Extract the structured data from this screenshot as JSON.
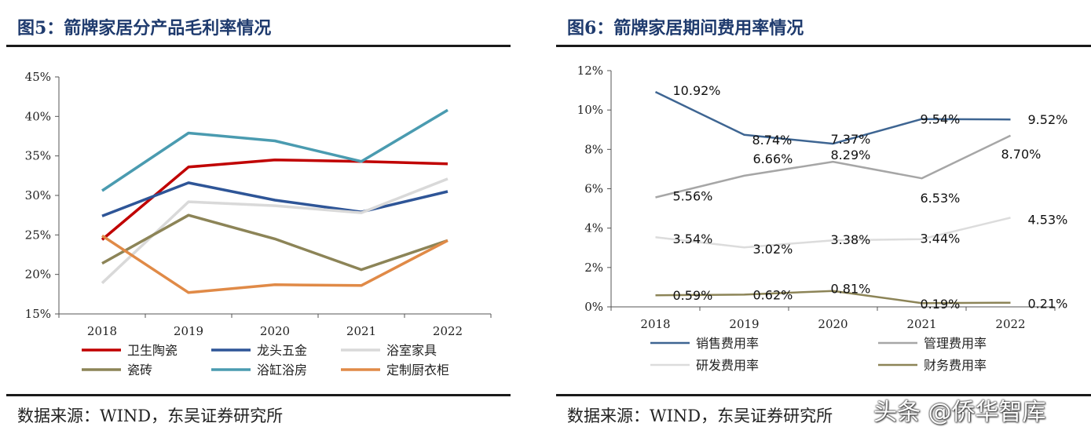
{
  "charts": {
    "left": {
      "figure_title": "图5：箭牌家居分产品毛利率情况",
      "source": "数据来源：WIND，东吴证券研究所"
    },
    "right": {
      "figure_title": "图6：箭牌家居期间费用率情况",
      "source": "数据来源：WIND，东吴证券研究所"
    }
  },
  "watermark": "头条 @侨华智库",
  "chart_data": [
    {
      "type": "line",
      "title": "图5：箭牌家居分产品毛利率情况",
      "x": [
        "2018",
        "2019",
        "2020",
        "2021",
        "2022"
      ],
      "ylim": [
        15,
        45
      ],
      "yticks": [
        "15%",
        "20%",
        "25%",
        "30%",
        "35%",
        "40%",
        "45%"
      ],
      "grid": false,
      "legend_position": "bottom",
      "series": [
        {
          "name": "卫生陶瓷",
          "values": [
            24.4,
            33.6,
            34.5,
            34.3,
            34.0
          ],
          "color": "#c00000"
        },
        {
          "name": "龙头五金",
          "values": [
            27.4,
            31.6,
            29.4,
            27.9,
            30.5
          ],
          "color": "#2e5597"
        },
        {
          "name": "浴室家具",
          "values": [
            18.9,
            29.2,
            28.7,
            27.8,
            32.1
          ],
          "color": "#d9d9d9"
        },
        {
          "name": "瓷砖",
          "values": [
            21.4,
            27.5,
            24.5,
            20.6,
            24.3
          ],
          "color": "#8c8457"
        },
        {
          "name": "浴缸浴房",
          "values": [
            30.6,
            37.9,
            36.9,
            34.3,
            40.8
          ],
          "color": "#4a9bb0"
        },
        {
          "name": "定制厨衣柜",
          "values": [
            24.9,
            17.7,
            18.7,
            18.6,
            24.3
          ],
          "color": "#e08a47"
        }
      ]
    },
    {
      "type": "line",
      "title": "图6：箭牌家居期间费用率情况",
      "x": [
        "2018",
        "2019",
        "2020",
        "2021",
        "2022"
      ],
      "ylim": [
        0,
        12
      ],
      "yticks": [
        "0%",
        "2%",
        "4%",
        "6%",
        "8%",
        "10%",
        "12%"
      ],
      "grid": false,
      "legend_position": "bottom",
      "series": [
        {
          "name": "销售费用率",
          "values": [
            10.92,
            8.74,
            8.29,
            9.54,
            9.52
          ],
          "labels": [
            "10.92%",
            "8.74%",
            "8.29%",
            "9.54%",
            "9.52%"
          ],
          "color": "#3e6592"
        },
        {
          "name": "管理费用率",
          "values": [
            5.56,
            6.66,
            7.37,
            6.53,
            8.7
          ],
          "labels": [
            "5.56%",
            "6.66%",
            "7.37%",
            "6.53%",
            "8.70%"
          ],
          "color": "#a6a6a6"
        },
        {
          "name": "研发费用率",
          "values": [
            3.54,
            3.02,
            3.38,
            3.44,
            4.53
          ],
          "labels": [
            "3.54%",
            "3.02%",
            "3.38%",
            "3.44%",
            "4.53%"
          ],
          "color": "#dcdcdc"
        },
        {
          "name": "财务费用率",
          "values": [
            0.59,
            0.62,
            0.81,
            0.19,
            0.21
          ],
          "labels": [
            "0.59%",
            "0.62%",
            "0.81%",
            "0.19%",
            "0.21%"
          ],
          "color": "#8c8457"
        }
      ]
    }
  ]
}
